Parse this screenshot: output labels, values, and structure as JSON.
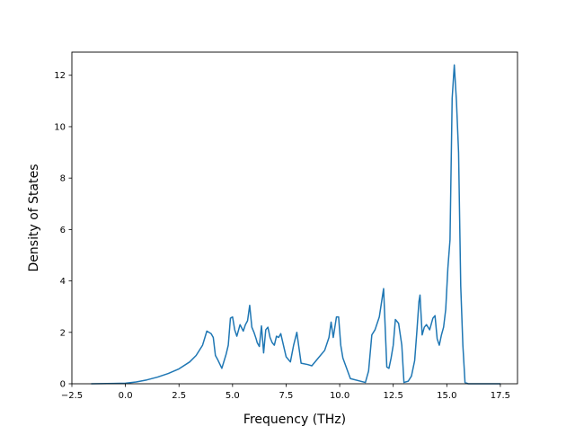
{
  "chart_data": {
    "type": "line",
    "title": "",
    "xlabel": "Frequency (THz)",
    "ylabel": "Density of States",
    "xlim": [
      -2.5,
      18.3
    ],
    "ylim": [
      0,
      12.9
    ],
    "xticks": [
      -2.5,
      0.0,
      2.5,
      5.0,
      7.5,
      10.0,
      12.5,
      15.0,
      17.5
    ],
    "xtick_labels": [
      "−2.5",
      "0.0",
      "2.5",
      "5.0",
      "7.5",
      "10.0",
      "12.5",
      "15.0",
      "17.5"
    ],
    "yticks": [
      0,
      2,
      4,
      6,
      8,
      10,
      12
    ],
    "ytick_labels": [
      "0",
      "2",
      "4",
      "6",
      "8",
      "10",
      "12"
    ],
    "grid": false,
    "line_color": "#1f77b4",
    "series": [
      {
        "name": "",
        "x": [
          -1.6,
          0.0,
          0.5,
          1.0,
          1.5,
          2.0,
          2.5,
          3.0,
          3.3,
          3.6,
          3.8,
          4.0,
          4.1,
          4.2,
          4.3,
          4.5,
          4.7,
          4.8,
          4.9,
          5.0,
          5.1,
          5.2,
          5.35,
          5.5,
          5.6,
          5.7,
          5.8,
          5.9,
          6.0,
          6.1,
          6.15,
          6.25,
          6.35,
          6.45,
          6.55,
          6.65,
          6.75,
          6.85,
          6.95,
          7.05,
          7.15,
          7.25,
          7.5,
          7.7,
          7.85,
          8.0,
          8.2,
          8.5,
          8.7,
          9.0,
          9.3,
          9.5,
          9.6,
          9.7,
          9.85,
          9.95,
          10.05,
          10.15,
          10.5,
          11.2,
          11.35,
          11.5,
          11.65,
          11.85,
          12.05,
          12.2,
          12.3,
          12.4,
          12.5,
          12.6,
          12.75,
          12.9,
          13.0,
          13.2,
          13.35,
          13.5,
          13.6,
          13.7,
          13.75,
          13.85,
          13.95,
          14.05,
          14.2,
          14.35,
          14.45,
          14.55,
          14.65,
          14.75,
          14.85,
          14.95,
          15.05,
          15.15,
          15.25,
          15.35,
          15.45,
          15.55,
          15.65,
          15.75,
          15.85,
          16.0,
          16.5,
          17.5
        ],
        "y": [
          0.0,
          0.02,
          0.07,
          0.15,
          0.26,
          0.4,
          0.58,
          0.85,
          1.1,
          1.5,
          2.05,
          1.95,
          1.8,
          1.1,
          0.95,
          0.6,
          1.15,
          1.5,
          2.55,
          2.6,
          2.1,
          1.85,
          2.3,
          2.05,
          2.3,
          2.45,
          3.05,
          2.2,
          2.0,
          1.75,
          1.6,
          1.45,
          2.25,
          1.2,
          2.1,
          2.2,
          1.8,
          1.6,
          1.5,
          1.85,
          1.8,
          1.95,
          1.05,
          0.85,
          1.5,
          2.0,
          0.8,
          0.75,
          0.7,
          1.0,
          1.3,
          1.8,
          2.4,
          1.8,
          2.6,
          2.6,
          1.5,
          1.0,
          0.2,
          0.05,
          0.5,
          1.9,
          2.1,
          2.6,
          3.7,
          0.65,
          0.6,
          1.0,
          1.5,
          2.5,
          2.35,
          1.5,
          0.05,
          0.1,
          0.3,
          0.9,
          2.0,
          3.2,
          3.45,
          1.9,
          2.2,
          2.3,
          2.1,
          2.55,
          2.65,
          1.75,
          1.5,
          1.9,
          2.2,
          2.9,
          4.5,
          5.6,
          11.1,
          12.4,
          11.0,
          9.0,
          3.8,
          1.5,
          0.05,
          0.0,
          0.0,
          0.0
        ]
      }
    ]
  }
}
